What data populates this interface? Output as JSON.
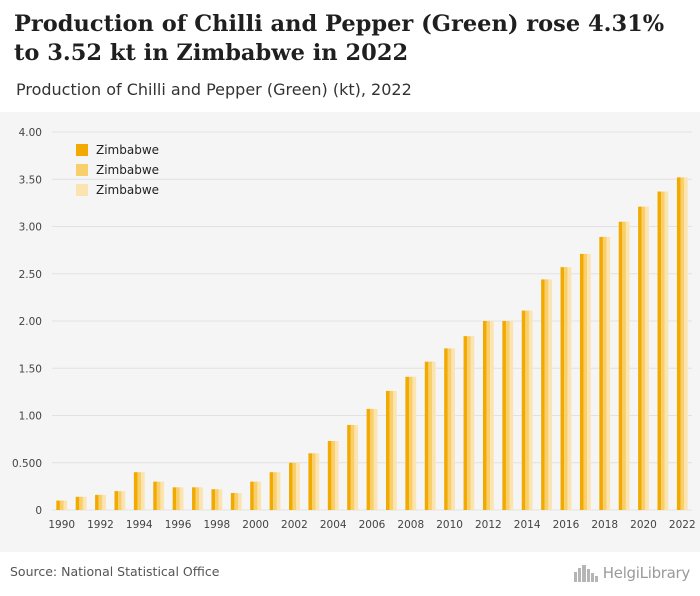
{
  "header": {
    "title": "Production of Chilli and Pepper (Green) rose 4.31% to 3.52 kt in Zimbabwe in 2022",
    "subtitle": "Production of Chilli and Pepper (Green) (kt), 2022"
  },
  "footer": {
    "source": "Source: National Statistical Office",
    "brand": "HelgiLibrary",
    "brand_icon": "building-skyline-icon"
  },
  "colors": {
    "series": [
      "#f2a900",
      "#f8cf6a",
      "#fbe4b0"
    ],
    "grid": "#e2e2e2",
    "axis_text": "#444444",
    "background": "#f5f5f5"
  },
  "chart_data": {
    "type": "bar",
    "title": "Production of Chilli and Pepper (Green) (kt), 2022",
    "xlabel": "",
    "ylabel": "",
    "ylim": [
      0,
      4.0
    ],
    "yticks": [
      "0",
      "0.500",
      "1.00",
      "1.50",
      "2.00",
      "2.50",
      "3.00",
      "3.50",
      "4.00"
    ],
    "ytick_values": [
      0,
      0.5,
      1.0,
      1.5,
      2.0,
      2.5,
      3.0,
      3.5,
      4.0
    ],
    "grid": true,
    "legend_position": "top-left",
    "categories": [
      "1990",
      "1991",
      "1992",
      "1993",
      "1994",
      "1995",
      "1996",
      "1997",
      "1998",
      "1999",
      "2000",
      "2001",
      "2002",
      "2003",
      "2004",
      "2005",
      "2006",
      "2007",
      "2008",
      "2009",
      "2010",
      "2011",
      "2012",
      "2013",
      "2014",
      "2015",
      "2016",
      "2017",
      "2018",
      "2019",
      "2020",
      "2021",
      "2022"
    ],
    "xtick_labels": [
      "1990",
      "1992",
      "1994",
      "1996",
      "1998",
      "2000",
      "2002",
      "2004",
      "2006",
      "2008",
      "2010",
      "2012",
      "2014",
      "2016",
      "2018",
      "2020",
      "2022"
    ],
    "series": [
      {
        "name": "Zimbabwe",
        "values": [
          0.1,
          0.14,
          0.16,
          0.2,
          0.4,
          0.3,
          0.24,
          0.24,
          0.22,
          0.18,
          0.3,
          0.4,
          0.5,
          0.6,
          0.73,
          0.9,
          1.07,
          1.26,
          1.41,
          1.57,
          1.71,
          1.84,
          2.0,
          2.0,
          2.11,
          2.44,
          2.57,
          2.71,
          2.89,
          3.05,
          3.21,
          3.37,
          3.52
        ]
      },
      {
        "name": "Zimbabwe",
        "values": [
          0.1,
          0.14,
          0.16,
          0.2,
          0.4,
          0.3,
          0.24,
          0.24,
          0.22,
          0.18,
          0.3,
          0.4,
          0.5,
          0.6,
          0.73,
          0.9,
          1.07,
          1.26,
          1.41,
          1.57,
          1.71,
          1.84,
          2.0,
          2.0,
          2.11,
          2.44,
          2.57,
          2.71,
          2.89,
          3.05,
          3.21,
          3.37,
          3.52
        ]
      },
      {
        "name": "Zimbabwe",
        "values": [
          0.1,
          0.14,
          0.16,
          0.2,
          0.4,
          0.3,
          0.24,
          0.24,
          0.22,
          0.18,
          0.3,
          0.4,
          0.5,
          0.6,
          0.73,
          0.9,
          1.07,
          1.26,
          1.41,
          1.57,
          1.71,
          1.84,
          2.0,
          2.0,
          2.11,
          2.44,
          2.57,
          2.71,
          2.89,
          3.05,
          3.21,
          3.37,
          3.52
        ]
      }
    ]
  }
}
